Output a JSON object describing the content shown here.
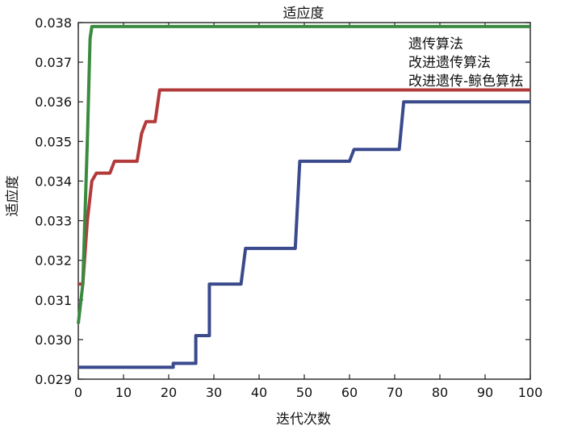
{
  "chart_data": {
    "type": "line",
    "title": "适应度",
    "xlabel": "迭代次数",
    "ylabel": "适应度",
    "xlim": [
      0,
      100
    ],
    "ylim": [
      0.029,
      0.038
    ],
    "x_ticks": [
      0,
      10,
      20,
      30,
      40,
      50,
      60,
      70,
      80,
      90,
      100
    ],
    "y_ticks": [
      0.029,
      0.03,
      0.031,
      0.032,
      0.033,
      0.034,
      0.035,
      0.036,
      0.037,
      0.038
    ],
    "y_tick_labels": [
      "0.029",
      "0.030",
      "0.031",
      "0.032",
      "0.033",
      "0.034",
      "0.035",
      "0.036",
      "0.037",
      "0.038"
    ],
    "grid": false,
    "legend": {
      "placement": "top-right",
      "show_markers": false
    },
    "series": [
      {
        "name": "遗传算法",
        "color": "#3a4a8c",
        "points": [
          [
            0,
            0.0293
          ],
          [
            21,
            0.0293
          ],
          [
            21,
            0.0294
          ],
          [
            26,
            0.0294
          ],
          [
            26,
            0.0301
          ],
          [
            29,
            0.0301
          ],
          [
            29,
            0.0314
          ],
          [
            36,
            0.0314
          ],
          [
            37,
            0.0323
          ],
          [
            48,
            0.0323
          ],
          [
            49,
            0.0345
          ],
          [
            60,
            0.0345
          ],
          [
            61,
            0.0348
          ],
          [
            71,
            0.0348
          ],
          [
            72,
            0.036
          ],
          [
            100,
            0.036
          ]
        ]
      },
      {
        "name": "改进遗传算法",
        "color": "#b23a3a",
        "points": [
          [
            0,
            0.0314
          ],
          [
            1,
            0.0314
          ],
          [
            2,
            0.033
          ],
          [
            3,
            0.034
          ],
          [
            4,
            0.0342
          ],
          [
            7,
            0.0342
          ],
          [
            8,
            0.0345
          ],
          [
            13,
            0.0345
          ],
          [
            14,
            0.0352
          ],
          [
            15,
            0.0355
          ],
          [
            17,
            0.0355
          ],
          [
            18,
            0.0363
          ],
          [
            100,
            0.0363
          ]
        ]
      },
      {
        "name": "改进遗传-鲸色算祛",
        "color": "#3a8a3f",
        "points": [
          [
            0,
            0.0304
          ],
          [
            1,
            0.0314
          ],
          [
            2,
            0.035
          ],
          [
            2.6,
            0.0376
          ],
          [
            3,
            0.0379
          ],
          [
            100,
            0.0379
          ]
        ]
      }
    ]
  }
}
